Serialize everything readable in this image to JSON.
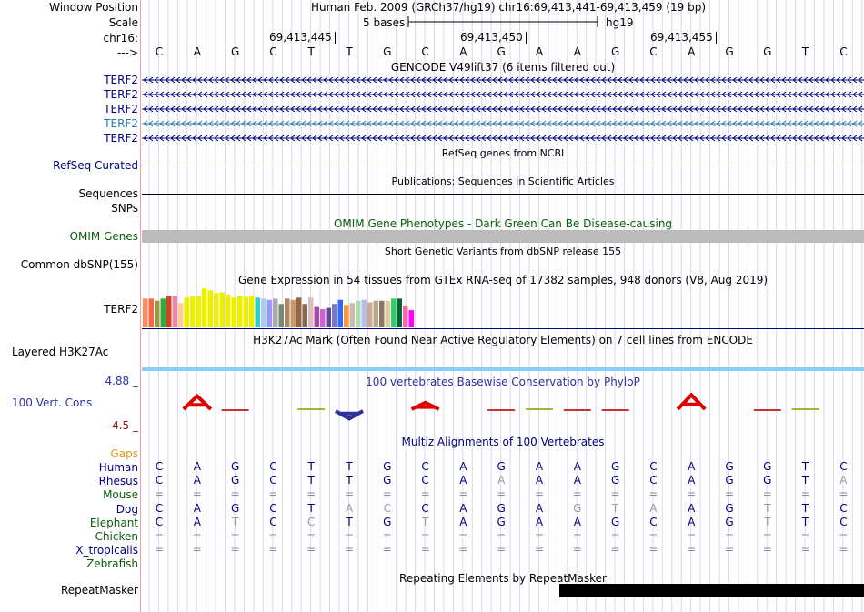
{
  "colors": {
    "navy": "#000080",
    "teal": "#2a7aa8",
    "orange": "#e8960c",
    "darkgreen": "#0a5c0a",
    "conservation_blue": "#3030a0",
    "conservation_red": "#a01010",
    "encode_blue": "#87cefa",
    "phylop_red": "#e00000",
    "rmsk_black": "#000000",
    "grid_line": "#d8d8ee",
    "divider": "#f0a0a0",
    "omim_gray": "#bbbbbb"
  },
  "header": {
    "window_position_label": "Window Position",
    "scale_label": "Scale",
    "chrom_label": "chr16:",
    "strand_label": "--->",
    "position_text": "Human Feb. 2009 (GRCh37/hg19)   chr16:69,413,441-69,413,459 (19 bp)",
    "scale_bases": "5 bases",
    "scale_db": "hg19",
    "ticks": [
      "69,413,445",
      "69,413,450",
      "69,413,455"
    ]
  },
  "reference_bases": [
    "C",
    "A",
    "G",
    "C",
    "T",
    "T",
    "G",
    "C",
    "A",
    "G",
    "A",
    "A",
    "G",
    "C",
    "A",
    "G",
    "G",
    "T",
    "C"
  ],
  "tracks": {
    "gencode": {
      "title": "GENCODE V49lift37 (6 items filtered out)",
      "items": [
        {
          "name": "TERF2",
          "color": "#000080"
        },
        {
          "name": "TERF2",
          "color": "#000080"
        },
        {
          "name": "TERF2",
          "color": "#000080"
        },
        {
          "name": "TERF2",
          "color": "#2a7aa8"
        },
        {
          "name": "TERF2",
          "color": "#000080"
        }
      ]
    },
    "refseq": {
      "title": "RefSeq genes from NCBI",
      "label": "RefSeq Curated"
    },
    "publications": {
      "title": "Publications: Sequences in Scientific Articles",
      "label": "Sequences"
    },
    "snps_label": "SNPs",
    "omim": {
      "title": "OMIM Gene Phenotypes - Dark Green Can Be Disease-causing",
      "label": "OMIM Genes"
    },
    "dbsnp": {
      "title": "Short Genetic Variants from dbSNP release 155",
      "label": "Common dbSNP(155)"
    },
    "gtex": {
      "title": "Gene Expression in 54 tissues from GTEx RNA-seq of 17382 samples, 948 donors (V8, Aug 2019)",
      "label": "TERF2",
      "bars": [
        {
          "value": 0.92,
          "color": "#ff8a5a"
        },
        {
          "value": 0.92,
          "color": "#ff6644"
        },
        {
          "value": 0.85,
          "color": "#999944"
        },
        {
          "value": 0.92,
          "color": "#33aa33"
        },
        {
          "value": 1.0,
          "color": "#cc4422"
        },
        {
          "value": 1.0,
          "color": "#ee88aa"
        },
        {
          "value": 0.78,
          "color": "#ffcc99"
        },
        {
          "value": 0.95,
          "color": "#eeee00"
        },
        {
          "value": 1.0,
          "color": "#eeee00"
        },
        {
          "value": 1.0,
          "color": "#eeee00"
        },
        {
          "value": 1.25,
          "color": "#eeee00"
        },
        {
          "value": 1.18,
          "color": "#eeee00"
        },
        {
          "value": 1.1,
          "color": "#eeee00"
        },
        {
          "value": 1.12,
          "color": "#eeee00"
        },
        {
          "value": 1.05,
          "color": "#eeee00"
        },
        {
          "value": 0.95,
          "color": "#eeee00"
        },
        {
          "value": 1.0,
          "color": "#eeee00"
        },
        {
          "value": 0.98,
          "color": "#eeee00"
        },
        {
          "value": 1.0,
          "color": "#eeee00"
        },
        {
          "value": 0.95,
          "color": "#33cccc"
        },
        {
          "value": 0.92,
          "color": "#aaccee"
        },
        {
          "value": 0.88,
          "color": "#9999ff"
        },
        {
          "value": 0.92,
          "color": "#aaaaaa"
        },
        {
          "value": 0.75,
          "color": "#778877"
        },
        {
          "value": 0.92,
          "color": "#aa8866"
        },
        {
          "value": 0.88,
          "color": "#cc9966"
        },
        {
          "value": 0.95,
          "color": "#996644"
        },
        {
          "value": 0.75,
          "color": "#886655"
        },
        {
          "value": 0.95,
          "color": "#ddbbbb"
        },
        {
          "value": 0.65,
          "color": "#aa44aa"
        },
        {
          "value": 0.58,
          "color": "#cc66cc"
        },
        {
          "value": 0.62,
          "color": "#664499"
        },
        {
          "value": 0.75,
          "color": "#7777cc"
        },
        {
          "value": 0.88,
          "color": "#3366ff"
        },
        {
          "value": 0.72,
          "color": "#ff9933"
        },
        {
          "value": 0.78,
          "color": "#ccbbaa"
        },
        {
          "value": 0.85,
          "color": "#aaddaa"
        },
        {
          "value": 0.88,
          "color": "#bbbbee"
        },
        {
          "value": 0.8,
          "color": "#ccaa99"
        },
        {
          "value": 0.85,
          "color": "#bbaa88"
        },
        {
          "value": 0.85,
          "color": "#887766"
        },
        {
          "value": 0.85,
          "color": "#ddcc99"
        },
        {
          "value": 0.92,
          "color": "#33cc66"
        },
        {
          "value": 0.92,
          "color": "#006633"
        },
        {
          "value": 0.7,
          "color": "#ff66aa"
        },
        {
          "value": 0.55,
          "color": "#ff00ff"
        }
      ]
    },
    "h3k27ac": {
      "title": "H3K27Ac Mark (Often Found Near Active Regulatory Elements) on 7 cell lines from ENCODE",
      "label": "Layered H3K27Ac"
    },
    "phylop": {
      "title": "100 vertebrates Basewise Conservation by PhyloP",
      "label": "100 Vert. Cons",
      "max_label": "4.88 _",
      "min_label": "-4.5 _",
      "scores": [
        0,
        1.2,
        -0.1,
        0,
        0.2,
        -0.7,
        0,
        0.6,
        0,
        -0.1,
        0.2,
        -0.1,
        -0.1,
        0,
        1.3,
        0,
        -0.2,
        0.3,
        0
      ]
    },
    "multiz": {
      "title": "Multiz Alignments of 100 Vertebrates",
      "gaps_label": "Gaps",
      "species": [
        {
          "name": "Human",
          "color": "#000080",
          "bases": [
            "C",
            "A",
            "G",
            "C",
            "T",
            "T",
            "G",
            "C",
            "A",
            "G",
            "A",
            "A",
            "G",
            "C",
            "A",
            "G",
            "G",
            "T",
            "C"
          ]
        },
        {
          "name": "Rhesus",
          "color": "#000080",
          "bases": [
            "C",
            "A",
            "G",
            "C",
            "T",
            "T",
            "G",
            "C",
            "A",
            "A",
            "A",
            "A",
            "G",
            "C",
            "A",
            "G",
            "G",
            "T",
            "A"
          ]
        },
        {
          "name": "Mouse",
          "color": "#0a5c0a",
          "bases": [
            "=",
            "=",
            "=",
            "=",
            "=",
            "=",
            "=",
            "=",
            "=",
            "=",
            "=",
            "=",
            "=",
            "=",
            "=",
            "=",
            "=",
            "=",
            "="
          ]
        },
        {
          "name": "Dog",
          "color": "#000080",
          "bases": [
            "C",
            "A",
            "G",
            "C",
            "T",
            "A",
            "C",
            "C",
            "A",
            "G",
            "A",
            "G",
            "T",
            "A",
            "A",
            "G",
            "T",
            "T",
            "C"
          ]
        },
        {
          "name": "Elephant",
          "color": "#0a5c0a",
          "bases": [
            "C",
            "A",
            "T",
            "C",
            "C",
            "T",
            "G",
            "T",
            "A",
            "G",
            "A",
            "A",
            "G",
            "C",
            "A",
            "G",
            "T",
            "T",
            "C"
          ]
        },
        {
          "name": "Chicken",
          "color": "#0a5c0a",
          "bases": [
            "=",
            "=",
            "=",
            "=",
            "=",
            "=",
            "=",
            "=",
            "=",
            "=",
            "=",
            "=",
            "=",
            "=",
            "=",
            "=",
            "=",
            "=",
            "="
          ]
        },
        {
          "name": "X_tropicalis",
          "color": "#000080",
          "bases": [
            "=",
            "=",
            "=",
            "=",
            "=",
            "=",
            "=",
            "=",
            "=",
            "=",
            "=",
            "=",
            "=",
            "=",
            "=",
            "=",
            "=",
            "=",
            "="
          ]
        },
        {
          "name": "Zebrafish",
          "color": "#0a5c0a",
          "bases": []
        }
      ]
    },
    "rmsk": {
      "title": "Repeating Elements by RepeatMasker",
      "label": "RepeatMasker"
    }
  }
}
